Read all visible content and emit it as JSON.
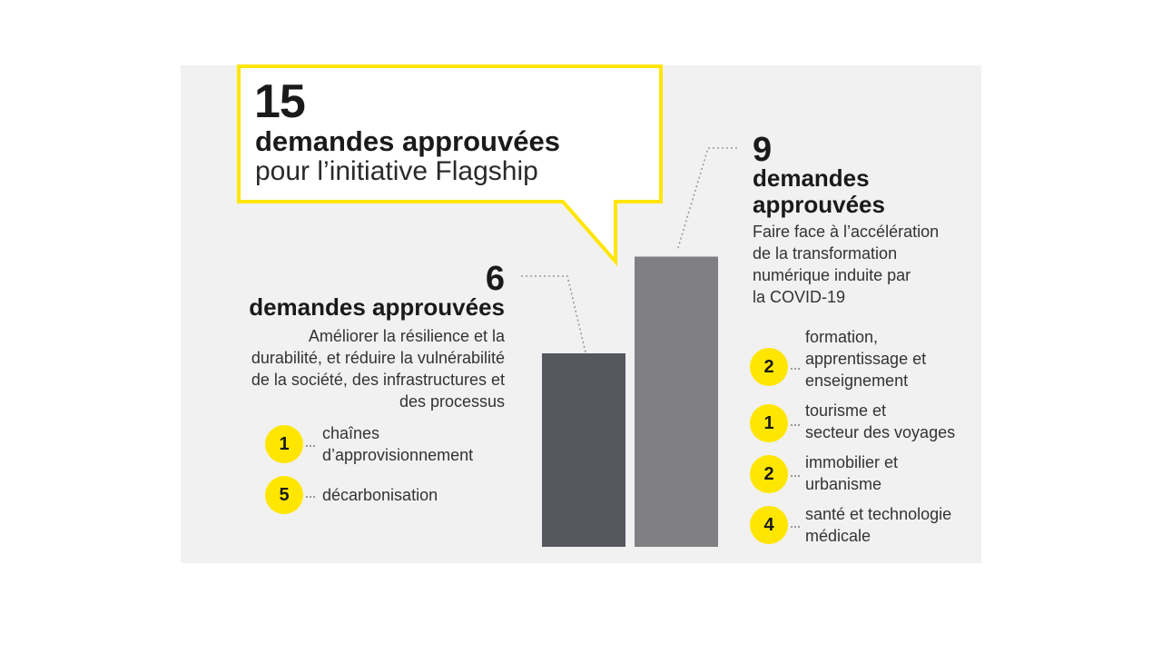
{
  "colors": {
    "accent_yellow": "#ffe600",
    "bar_dark": "#54575e",
    "bar_light": "#808084",
    "panel_bg": "#f1f1f1"
  },
  "callout": {
    "number": "15",
    "headline": "demandes approuvées",
    "subline": "pour l’initiative Flagship"
  },
  "left_group": {
    "number": "6",
    "headline": "demandes approuvées",
    "description": [
      "Améliorer la résilience et la",
      "durabilité, et réduire la vulnérabilité",
      "de la société, des infrastructures et",
      "des processus"
    ],
    "items": [
      {
        "count": "1",
        "label": [
          "chaînes",
          "d’approvisionnement"
        ]
      },
      {
        "count": "5",
        "label": [
          "décarbonisation"
        ]
      }
    ]
  },
  "right_group": {
    "number": "9",
    "headline": [
      "demandes",
      "approuvées"
    ],
    "description": [
      "Faire face à l’accélération",
      "de la transformation",
      "numérique induite par",
      "la COVID-19"
    ],
    "items": [
      {
        "count": "2",
        "label": [
          "formation,",
          "apprentissage et",
          "enseignement"
        ]
      },
      {
        "count": "1",
        "label": [
          "tourisme et",
          "secteur des voyages"
        ]
      },
      {
        "count": "2",
        "label": [
          "immobilier et",
          "urbanisme"
        ]
      },
      {
        "count": "4",
        "label": [
          "santé et technologie",
          "médicale"
        ]
      }
    ]
  },
  "chart_data": {
    "type": "bar",
    "categories": [
      "Améliorer la résilience et la durabilité",
      "Faire face à l’accélération de la transformation numérique"
    ],
    "values": [
      6,
      9
    ],
    "total": 15,
    "colors": [
      "#54575e",
      "#808084"
    ],
    "ylim": [
      0,
      10
    ]
  }
}
